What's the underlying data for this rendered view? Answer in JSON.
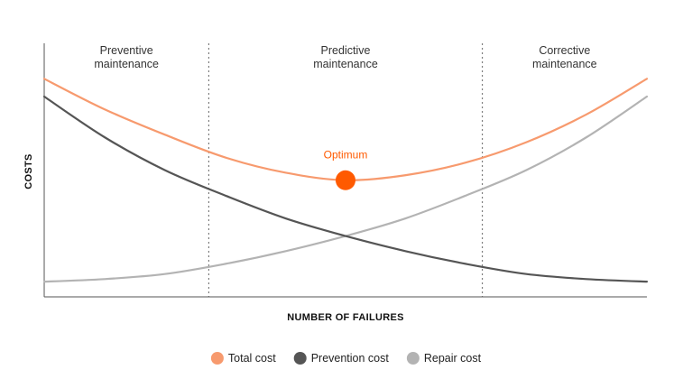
{
  "chart_data": {
    "type": "line",
    "title": "",
    "xlabel": "NUMBER OF FAILURES",
    "ylabel": "COSTS",
    "xlim": [
      0,
      1
    ],
    "ylim": [
      0,
      1
    ],
    "grid": false,
    "legend_position": "bottom-center",
    "regions": [
      {
        "name": "preventive",
        "lines": [
          "Preventive",
          "maintenance"
        ],
        "x_start": 0,
        "x_end": 0.273
      },
      {
        "name": "predictive",
        "lines": [
          "Predictive",
          "maintenance"
        ],
        "x_start": 0.273,
        "x_end": 0.727
      },
      {
        "name": "corrective",
        "lines": [
          "Corrective",
          "maintenance"
        ],
        "x_start": 0.727,
        "x_end": 1
      }
    ],
    "dividers": [
      0.273,
      0.727
    ],
    "x": [
      0,
      0.1,
      0.2,
      0.3,
      0.4,
      0.5,
      0.6,
      0.7,
      0.8,
      0.9,
      1.0
    ],
    "series": [
      {
        "key": "total",
        "name": "Total cost",
        "color": "#f79a6e",
        "values": [
          0.86,
          0.74,
          0.64,
          0.55,
          0.49,
          0.46,
          0.48,
          0.53,
          0.61,
          0.72,
          0.86
        ]
      },
      {
        "key": "prevention",
        "name": "Prevention cost",
        "color": "#555555",
        "values": [
          0.79,
          0.63,
          0.5,
          0.4,
          0.31,
          0.24,
          0.18,
          0.13,
          0.09,
          0.07,
          0.06
        ]
      },
      {
        "key": "repair",
        "name": "Repair cost",
        "color": "#b3b3b3",
        "values": [
          0.06,
          0.07,
          0.09,
          0.13,
          0.18,
          0.24,
          0.31,
          0.4,
          0.5,
          0.63,
          0.79
        ]
      }
    ],
    "annotations": [
      {
        "name": "optimum",
        "label": "Optimum",
        "x": 0.5,
        "y": 0.46,
        "color": "#ff5a00"
      }
    ]
  }
}
